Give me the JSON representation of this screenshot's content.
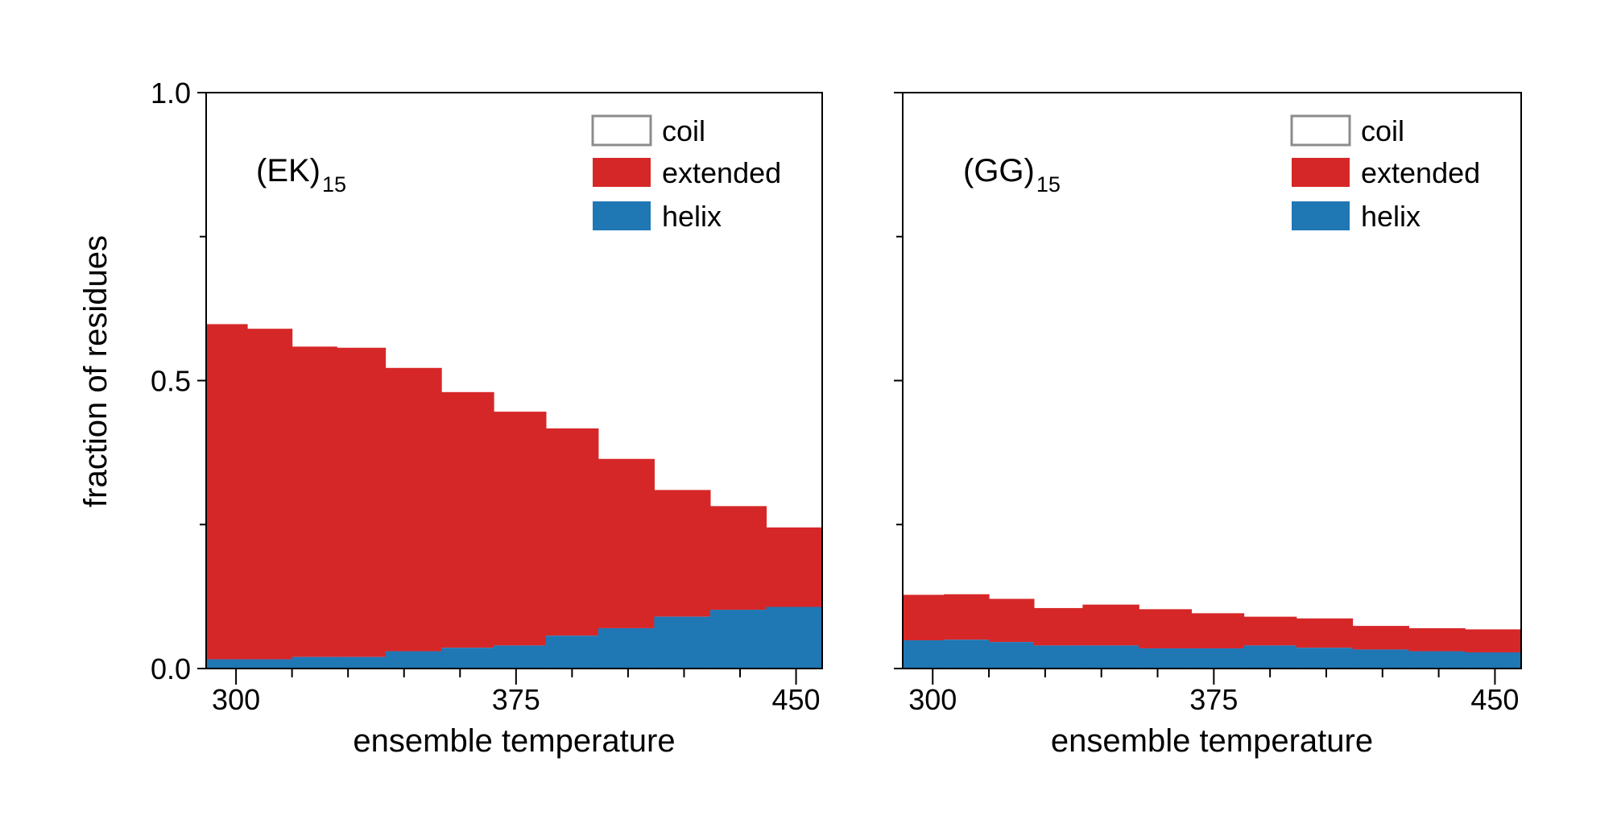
{
  "colors": {
    "coil": "#ffffff",
    "coil_edge": "#8c8c8c",
    "extended": "#d62728",
    "helix": "#1f77b4",
    "axis": "#000000"
  },
  "ylabel": "fraction of residues",
  "yticks": [
    "0.0",
    "0.5",
    "1.0"
  ],
  "chart_data": [
    {
      "type": "area",
      "panel_label": "(EK)",
      "panel_label_sub": "15",
      "xlabel": "ensemble temperature",
      "ylabel": "fraction of residues",
      "xticks": [
        300,
        375,
        450
      ],
      "xlim": [
        292,
        457
      ],
      "ylim": [
        0,
        1
      ],
      "legend": [
        "coil",
        "extended",
        "helix"
      ],
      "legend_position": "top-right",
      "x_bin_edges": [
        292,
        303,
        315,
        327,
        340,
        355,
        369,
        383,
        397,
        412,
        427,
        442,
        457
      ],
      "series": [
        {
          "name": "helix",
          "values": [
            0.016,
            0.016,
            0.02,
            0.02,
            0.03,
            0.036,
            0.04,
            0.057,
            0.07,
            0.09,
            0.102,
            0.107
          ]
        },
        {
          "name": "extended",
          "values": [
            0.582,
            0.574,
            0.539,
            0.537,
            0.492,
            0.444,
            0.406,
            0.36,
            0.294,
            0.22,
            0.18,
            0.138
          ]
        },
        {
          "name": "coil",
          "values": [
            0.402,
            0.41,
            0.441,
            0.443,
            0.478,
            0.52,
            0.554,
            0.583,
            0.636,
            0.69,
            0.718,
            0.755
          ]
        }
      ]
    },
    {
      "type": "area",
      "panel_label": "(GG)",
      "panel_label_sub": "15",
      "xlabel": "ensemble temperature",
      "ylabel": "fraction of residues",
      "xticks": [
        300,
        375,
        450
      ],
      "xlim": [
        292,
        457
      ],
      "ylim": [
        0,
        1
      ],
      "legend": [
        "coil",
        "extended",
        "helix"
      ],
      "legend_position": "top-right",
      "x_bin_edges": [
        292,
        303,
        315,
        327,
        340,
        355,
        369,
        383,
        397,
        412,
        427,
        442,
        457
      ],
      "series": [
        {
          "name": "helix",
          "values": [
            0.049,
            0.05,
            0.046,
            0.04,
            0.04,
            0.035,
            0.035,
            0.04,
            0.036,
            0.033,
            0.03,
            0.028
          ]
        },
        {
          "name": "extended",
          "values": [
            0.079,
            0.079,
            0.075,
            0.065,
            0.071,
            0.068,
            0.061,
            0.05,
            0.051,
            0.041,
            0.04,
            0.04
          ]
        },
        {
          "name": "coil",
          "values": [
            0.872,
            0.871,
            0.879,
            0.895,
            0.889,
            0.897,
            0.904,
            0.91,
            0.913,
            0.926,
            0.93,
            0.932
          ]
        }
      ]
    }
  ]
}
